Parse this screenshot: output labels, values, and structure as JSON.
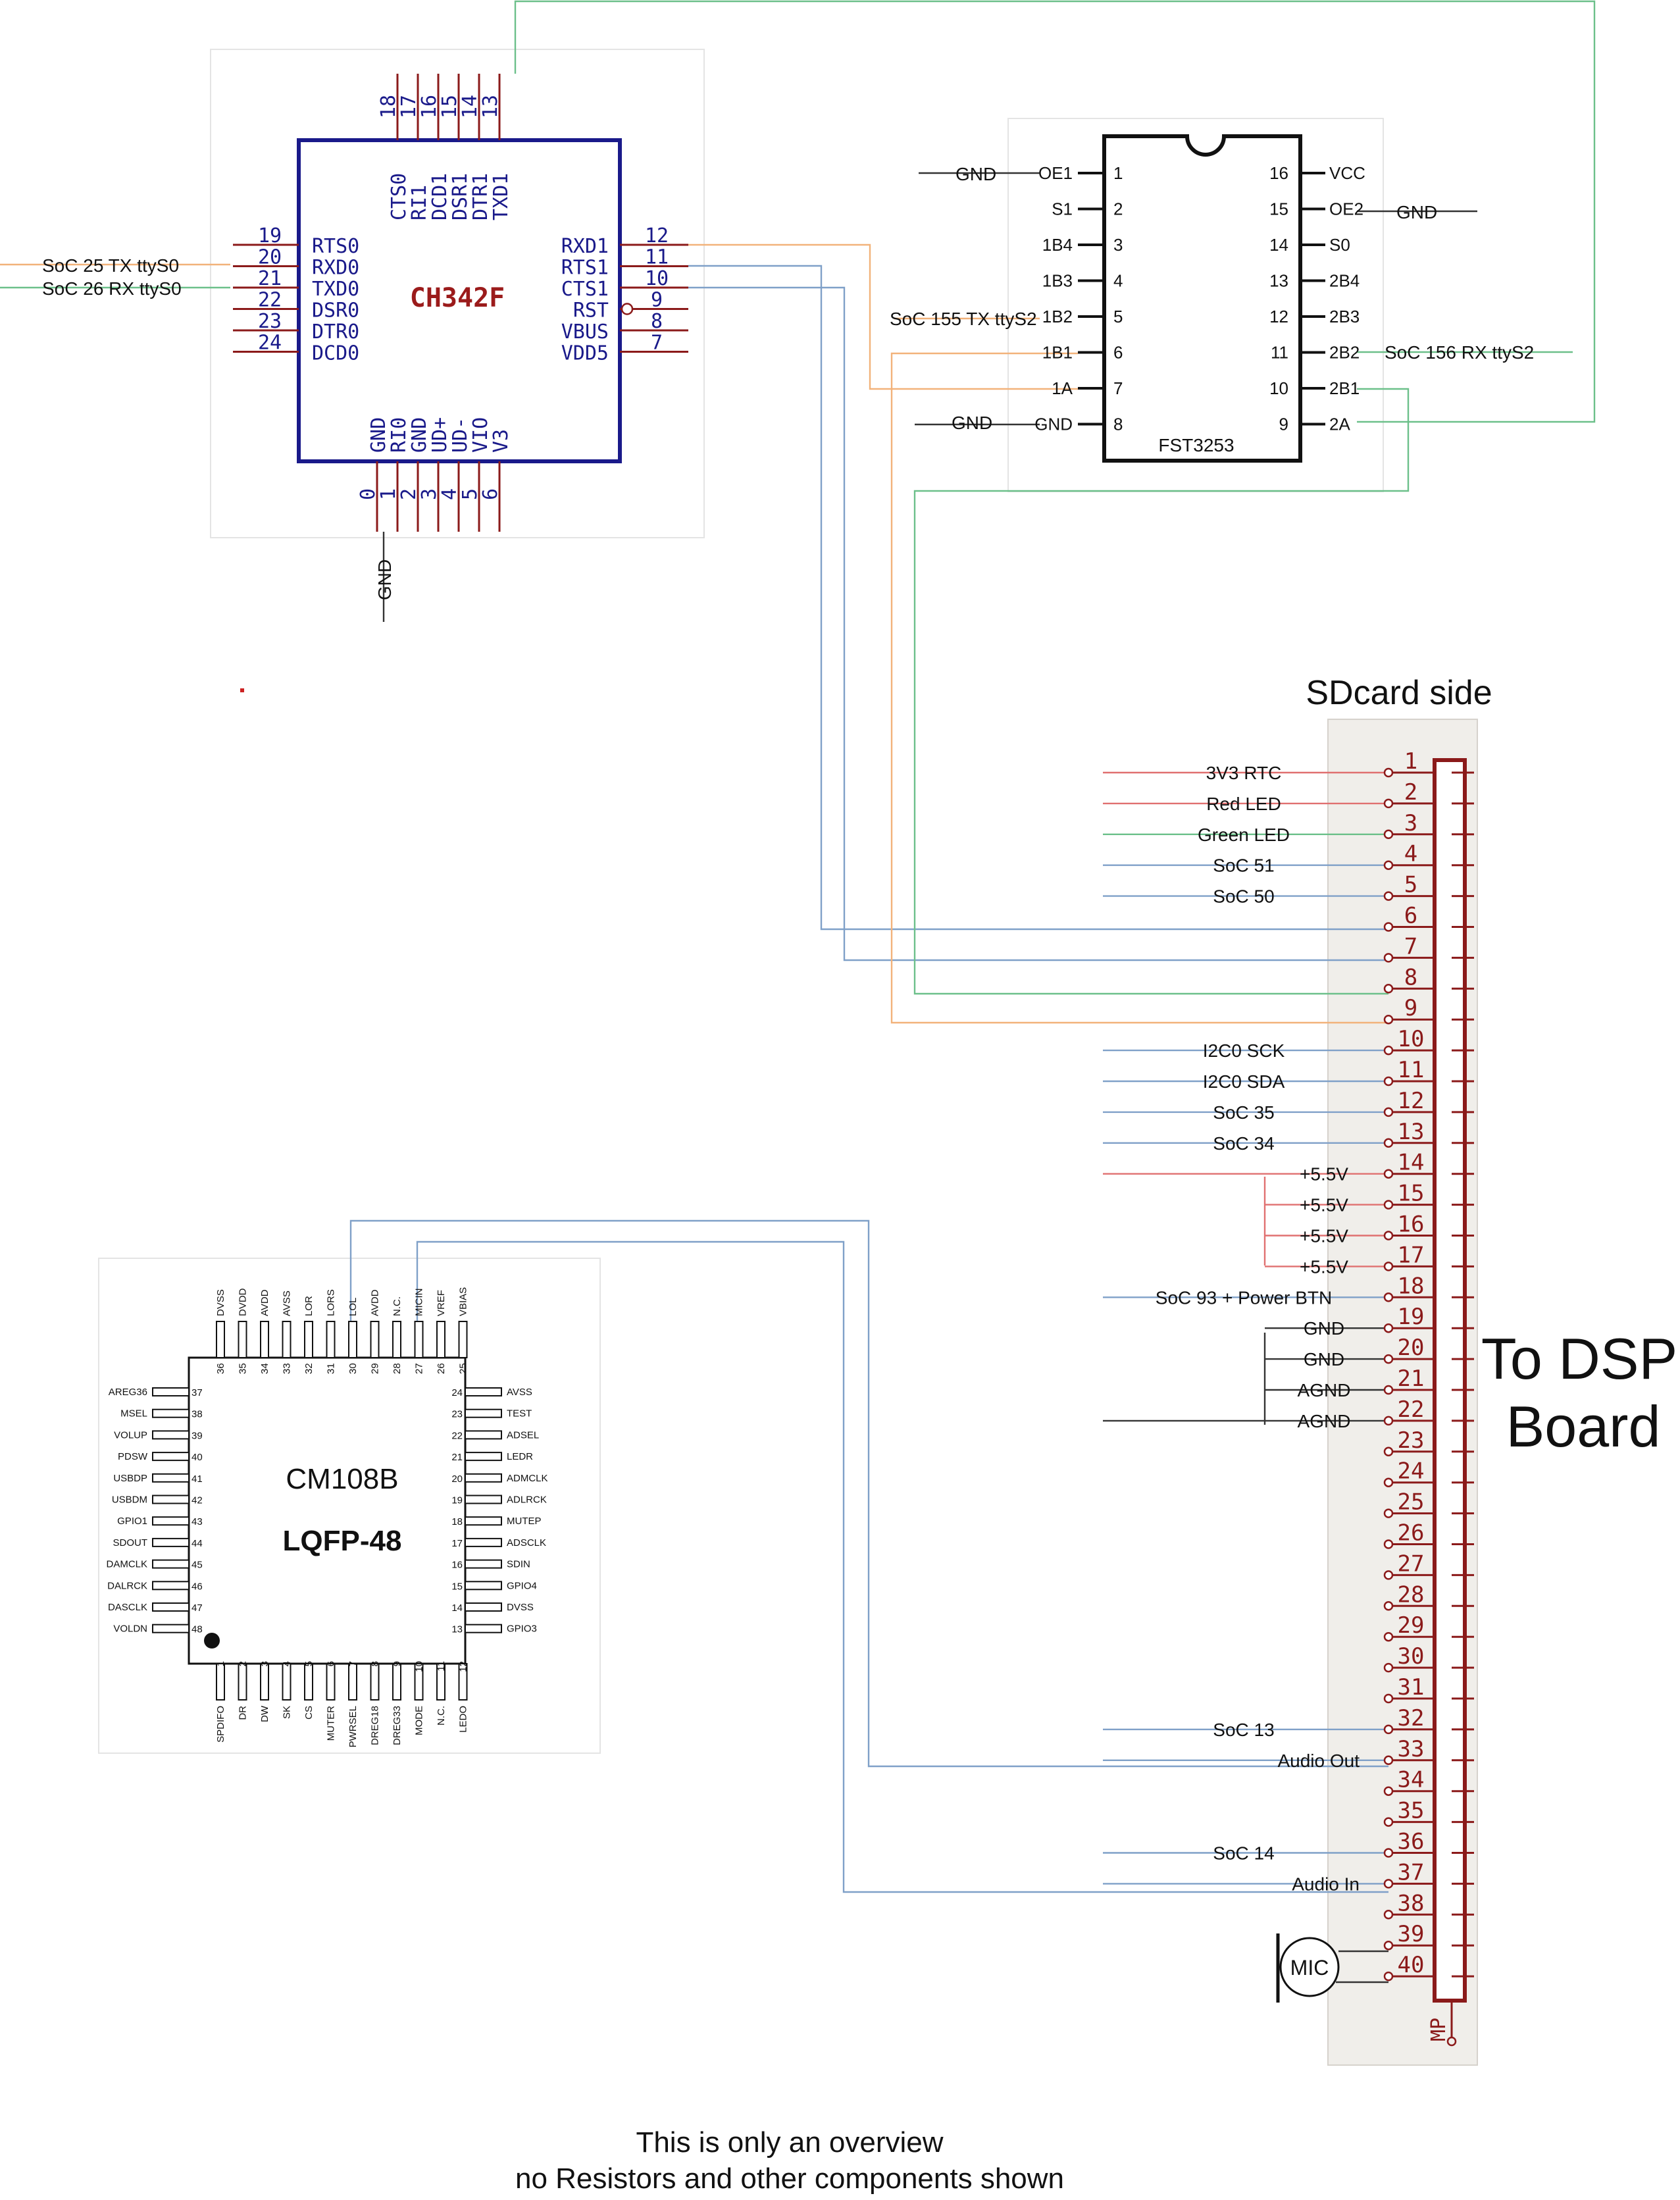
{
  "colors": {
    "chip_outline": "#1a1a8a",
    "ch_pin": "#8b1a1a",
    "ch_title": "#9b1b1b",
    "wire_orange": "#f2b27a",
    "wire_blue": "#7fa0c8",
    "wire_green": "#6cc08a",
    "wire_red": "#e07070",
    "wire_black": "#333333",
    "connector_body": "#ffffff",
    "connector_outline": "#8b1a1a",
    "connector_bg": "#f0eeea",
    "cm_fill": "#ffffff"
  },
  "ch342": {
    "title": "CH342F",
    "left_pins": [
      {
        "num": "19",
        "name": "RTS0"
      },
      {
        "num": "20",
        "name": "RXD0"
      },
      {
        "num": "21",
        "name": "TXD0"
      },
      {
        "num": "22",
        "name": "DSR0"
      },
      {
        "num": "23",
        "name": "DTR0"
      },
      {
        "num": "24",
        "name": "DCD0"
      }
    ],
    "right_pins": [
      {
        "num": "12",
        "name": "RXD1"
      },
      {
        "num": "11",
        "name": "RTS1"
      },
      {
        "num": "10",
        "name": "CTS1"
      },
      {
        "num": "9",
        "name": "RST"
      },
      {
        "num": "8",
        "name": "VBUS"
      },
      {
        "num": "7",
        "name": "VDD5"
      }
    ],
    "top_pins": [
      {
        "num": "18",
        "name": "CTS0"
      },
      {
        "num": "17",
        "name": "RI1"
      },
      {
        "num": "16",
        "name": "DCD1"
      },
      {
        "num": "15",
        "name": "DSR1"
      },
      {
        "num": "14",
        "name": "DTR1"
      },
      {
        "num": "13",
        "name": "TXD1"
      }
    ],
    "bottom_pins": [
      {
        "num": "0",
        "name": "GND"
      },
      {
        "num": "1",
        "name": "RI0"
      },
      {
        "num": "2",
        "name": "GND"
      },
      {
        "num": "3",
        "name": "UD+"
      },
      {
        "num": "4",
        "name": "UD-"
      },
      {
        "num": "5",
        "name": "VIO"
      },
      {
        "num": "6",
        "name": "V3"
      }
    ],
    "net_tx": "SoC 25 TX ttyS0",
    "net_rx": "SoC 26 RX ttyS0",
    "net_gnd": "GND"
  },
  "fst": {
    "title": "FST3253",
    "left_pins": [
      {
        "num": "1",
        "name": "OE1"
      },
      {
        "num": "2",
        "name": "S1"
      },
      {
        "num": "3",
        "name": "1B4"
      },
      {
        "num": "4",
        "name": "1B3"
      },
      {
        "num": "5",
        "name": "1B2"
      },
      {
        "num": "6",
        "name": "1B1"
      },
      {
        "num": "7",
        "name": "1A"
      },
      {
        "num": "8",
        "name": "GND"
      }
    ],
    "right_pins": [
      {
        "num": "16",
        "name": "VCC"
      },
      {
        "num": "15",
        "name": "OE2"
      },
      {
        "num": "14",
        "name": "S0"
      },
      {
        "num": "13",
        "name": "2B4"
      },
      {
        "num": "12",
        "name": "2B3"
      },
      {
        "num": "11",
        "name": "2B2"
      },
      {
        "num": "10",
        "name": "2B1"
      },
      {
        "num": "9",
        "name": "2A"
      }
    ],
    "label_gnd_1": "GND",
    "label_gnd_8": "GND",
    "label_gnd_15": "GND",
    "label_tx": "SoC 155 TX ttyS2",
    "label_rx": "SoC 156 RX ttyS2"
  },
  "connector": {
    "header": "SDcard side",
    "side_label_1": "To DSP",
    "side_label_2": "Board",
    "mp_label": "MP",
    "mic_label": "MIC",
    "pins": [
      {
        "num": "1",
        "label": "3V3 RTC"
      },
      {
        "num": "2",
        "label": "Red LED"
      },
      {
        "num": "3",
        "label": "Green LED"
      },
      {
        "num": "4",
        "label": "SoC 51"
      },
      {
        "num": "5",
        "label": "SoC 50"
      },
      {
        "num": "6",
        "label": ""
      },
      {
        "num": "7",
        "label": ""
      },
      {
        "num": "8",
        "label": ""
      },
      {
        "num": "9",
        "label": ""
      },
      {
        "num": "10",
        "label": "I2C0 SCK"
      },
      {
        "num": "11",
        "label": "I2C0 SDA"
      },
      {
        "num": "12",
        "label": "SoC 35"
      },
      {
        "num": "13",
        "label": "SoC 34"
      },
      {
        "num": "14",
        "label": "+5.5V"
      },
      {
        "num": "15",
        "label": "+5.5V"
      },
      {
        "num": "16",
        "label": "+5.5V"
      },
      {
        "num": "17",
        "label": "+5.5V"
      },
      {
        "num": "18",
        "label": "SoC 93 + Power BTN"
      },
      {
        "num": "19",
        "label": "GND"
      },
      {
        "num": "20",
        "label": "GND"
      },
      {
        "num": "21",
        "label": "AGND"
      },
      {
        "num": "22",
        "label": "AGND"
      },
      {
        "num": "23",
        "label": ""
      },
      {
        "num": "24",
        "label": ""
      },
      {
        "num": "25",
        "label": ""
      },
      {
        "num": "26",
        "label": ""
      },
      {
        "num": "27",
        "label": ""
      },
      {
        "num": "28",
        "label": ""
      },
      {
        "num": "29",
        "label": ""
      },
      {
        "num": "30",
        "label": ""
      },
      {
        "num": "31",
        "label": ""
      },
      {
        "num": "32",
        "label": "SoC 13"
      },
      {
        "num": "33",
        "label": "Audio Out"
      },
      {
        "num": "34",
        "label": ""
      },
      {
        "num": "35",
        "label": ""
      },
      {
        "num": "36",
        "label": "SoC 14"
      },
      {
        "num": "37",
        "label": "Audio In"
      },
      {
        "num": "38",
        "label": ""
      },
      {
        "num": "39",
        "label": ""
      },
      {
        "num": "40",
        "label": ""
      }
    ]
  },
  "cm108": {
    "title": "CM108B",
    "package": "LQFP-48",
    "left_pins": [
      {
        "num": "37",
        "name": "AREG36"
      },
      {
        "num": "38",
        "name": "MSEL"
      },
      {
        "num": "39",
        "name": "VOLUP"
      },
      {
        "num": "40",
        "name": "PDSW"
      },
      {
        "num": "41",
        "name": "USBDP"
      },
      {
        "num": "42",
        "name": "USBDM"
      },
      {
        "num": "43",
        "name": "GPIO1"
      },
      {
        "num": "44",
        "name": "SDOUT"
      },
      {
        "num": "45",
        "name": "DAMCLK"
      },
      {
        "num": "46",
        "name": "DALRCK"
      },
      {
        "num": "47",
        "name": "DASCLK"
      },
      {
        "num": "48",
        "name": "VOLDN"
      }
    ],
    "right_pins": [
      {
        "num": "24",
        "name": "AVSS"
      },
      {
        "num": "23",
        "name": "TEST"
      },
      {
        "num": "22",
        "name": "ADSEL"
      },
      {
        "num": "21",
        "name": "LEDR"
      },
      {
        "num": "20",
        "name": "ADMCLK"
      },
      {
        "num": "19",
        "name": "ADLRCK"
      },
      {
        "num": "18",
        "name": "MUTEP"
      },
      {
        "num": "17",
        "name": "ADSCLK"
      },
      {
        "num": "16",
        "name": "SDIN"
      },
      {
        "num": "15",
        "name": "GPIO4"
      },
      {
        "num": "14",
        "name": "DVSS"
      },
      {
        "num": "13",
        "name": "GPIO3"
      }
    ],
    "top_pins": [
      {
        "num": "36",
        "name": "DVSS"
      },
      {
        "num": "35",
        "name": "DVDD"
      },
      {
        "num": "34",
        "name": "AVDD"
      },
      {
        "num": "33",
        "name": "AVSS"
      },
      {
        "num": "32",
        "name": "LOR"
      },
      {
        "num": "31",
        "name": "LORS"
      },
      {
        "num": "30",
        "name": "LOL"
      },
      {
        "num": "29",
        "name": "AVDD"
      },
      {
        "num": "28",
        "name": "N.C."
      },
      {
        "num": "27",
        "name": "MICIN"
      },
      {
        "num": "26",
        "name": "VREF"
      },
      {
        "num": "25",
        "name": "VBIAS"
      }
    ],
    "bottom_pins": [
      {
        "num": "1",
        "name": "SPDIFO"
      },
      {
        "num": "2",
        "name": "DR"
      },
      {
        "num": "3",
        "name": "DW"
      },
      {
        "num": "4",
        "name": "SK"
      },
      {
        "num": "5",
        "name": "CS"
      },
      {
        "num": "6",
        "name": "MUTER"
      },
      {
        "num": "7",
        "name": "PWRSEL"
      },
      {
        "num": "8",
        "name": "DREG18"
      },
      {
        "num": "9",
        "name": "DREG33"
      },
      {
        "num": "10",
        "name": "MODE"
      },
      {
        "num": "11",
        "name": "N.C."
      },
      {
        "num": "12",
        "name": "LEDO"
      }
    ]
  },
  "footer": {
    "line1": "This is only an overview",
    "line2": "no Resistors and other components shown"
  }
}
